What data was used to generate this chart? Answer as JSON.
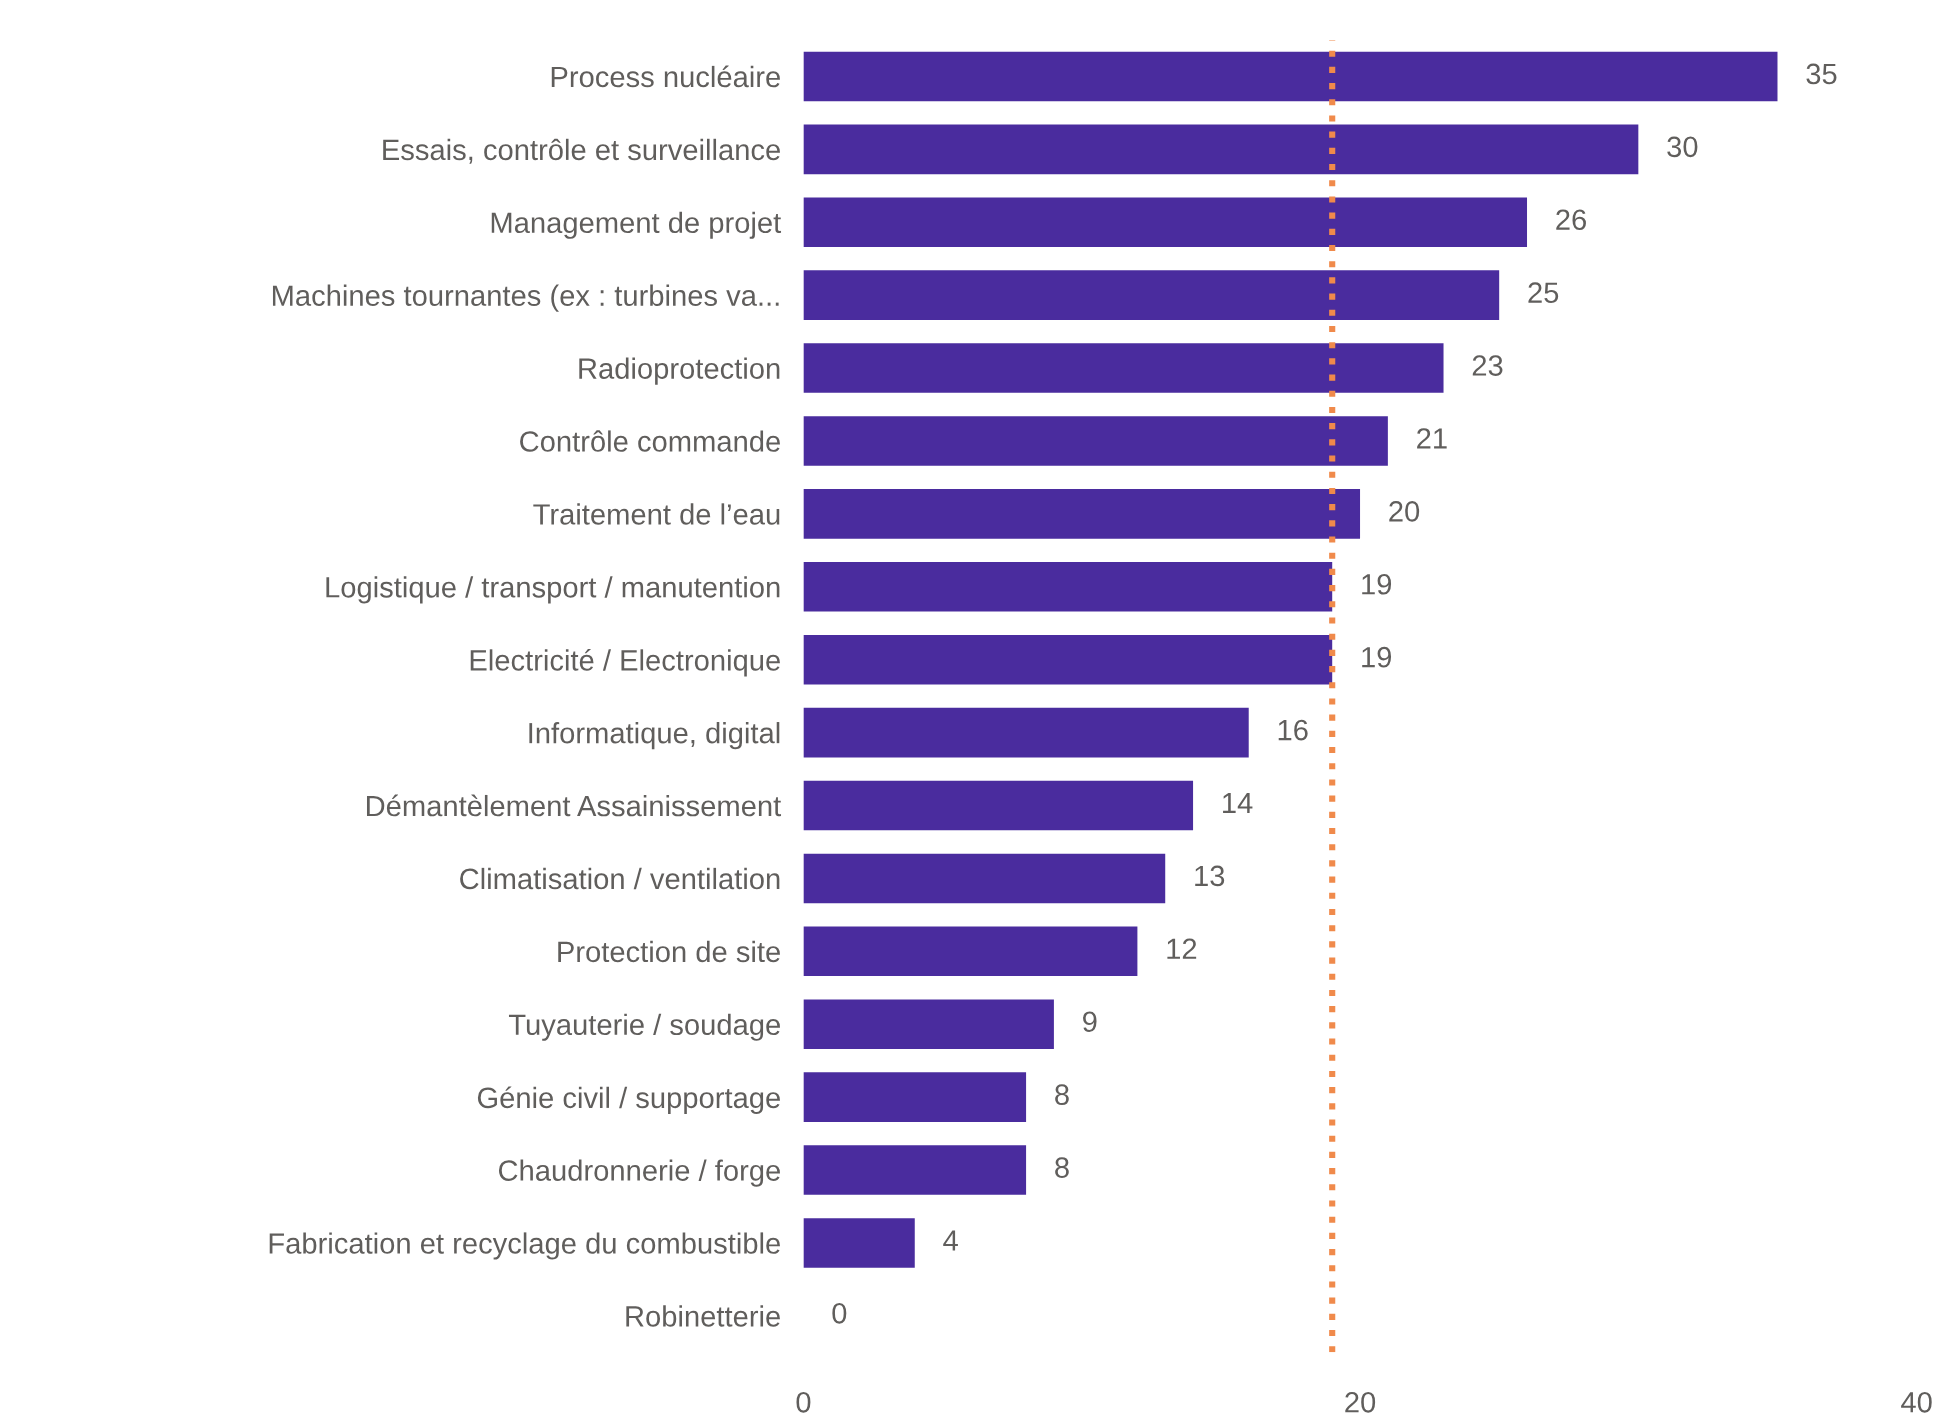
{
  "chart_data": {
    "type": "bar",
    "orientation": "horizontal",
    "categories": [
      "Process nucléaire",
      "Essais, contrôle et surveillance",
      "Management de projet",
      "Machines tournantes (ex : turbines va...",
      "Radioprotection",
      "Contrôle commande",
      "Traitement de l’eau",
      "Logistique / transport / manutention",
      "Electricité / Electronique",
      "Informatique, digital",
      "Démantèlement Assainissement",
      "Climatisation / ventilation",
      "Protection de site",
      "Tuyauterie / soudage",
      "Génie civil / supportage",
      "Chaudronnerie / forge",
      "Fabrication et recyclage du combustible",
      "Robinetterie"
    ],
    "values": [
      35,
      30,
      26,
      25,
      23,
      21,
      20,
      19,
      19,
      16,
      14,
      13,
      12,
      9,
      8,
      8,
      4,
      0
    ],
    "color": "#4a2c9e",
    "data_labels": true,
    "xlim": [
      0,
      40
    ],
    "xticks": [
      0,
      20,
      40
    ],
    "grid": false,
    "legend": false,
    "ref_lines": [
      {
        "axis": "x",
        "value": 19,
        "label": null,
        "color": "#f08a4b",
        "line_style": "dotted"
      }
    ]
  }
}
